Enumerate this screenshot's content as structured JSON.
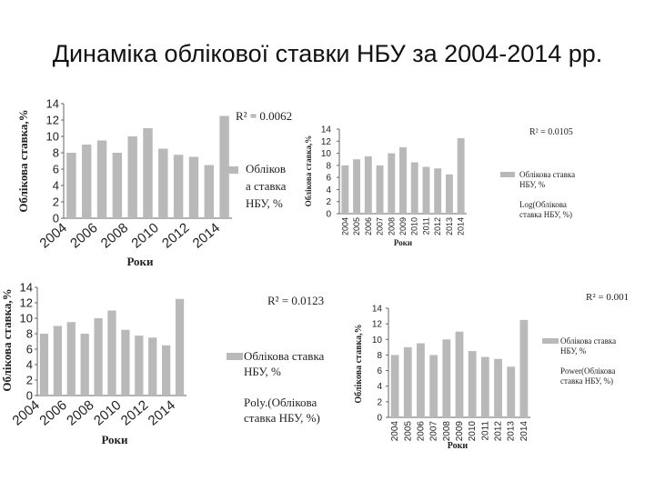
{
  "page": {
    "title": "Динаміка облікової ставки НБУ за 2004-2014 рр."
  },
  "chart_data": [
    {
      "type": "bar",
      "categories": [
        "2004",
        "2005",
        "2006",
        "2007",
        "2008",
        "2009",
        "2010",
        "2011",
        "2012",
        "2013",
        "2014"
      ],
      "series": [
        {
          "name": "Облікова ставка НБУ, %",
          "values": [
            8,
            9,
            9.5,
            8,
            10,
            11,
            8.5,
            7.75,
            7.5,
            6.5,
            12.5
          ]
        }
      ],
      "ylim": [
        0,
        14
      ],
      "yticks": [
        0,
        2,
        4,
        6,
        8,
        10,
        12,
        14
      ],
      "xticklabels": [
        "2004",
        "2006",
        "2008",
        "2010",
        "2012",
        "2014"
      ],
      "xlabel": "Роки",
      "ylabel": "Облікова ставка,%",
      "annotation": "R² = 0.0062",
      "legend": [
        "Обліков",
        "а ставка",
        "НБУ, %"
      ],
      "bar_color": "#b9b9b9"
    },
    {
      "type": "bar",
      "categories": [
        "2004",
        "2005",
        "2006",
        "2007",
        "2008",
        "2009",
        "2010",
        "2011",
        "2012",
        "2013",
        "2014"
      ],
      "series": [
        {
          "name": "Облікова ставка НБУ, %",
          "values": [
            8,
            9,
            9.5,
            8,
            10,
            11,
            8.5,
            7.75,
            7.5,
            6.5,
            12.5
          ]
        }
      ],
      "ylim": [
        0,
        14
      ],
      "yticks": [
        0,
        2,
        4,
        6,
        8,
        10,
        12,
        14
      ],
      "xticklabels": [
        "2004",
        "2005",
        "2006",
        "2007",
        "2008",
        "2009",
        "2010",
        "2011",
        "2012",
        "2013",
        "2014"
      ],
      "xlabel": "Роки",
      "ylabel": "Облікова ставка,%",
      "annotation": "R² = 0.0105",
      "legend": [
        "Облікова ставка",
        "НБУ, %",
        "",
        "Log(Облікова",
        "ставка НБУ, %)"
      ],
      "bar_color": "#b9b9b9"
    },
    {
      "type": "bar",
      "categories": [
        "2004",
        "2005",
        "2006",
        "2007",
        "2008",
        "2009",
        "2010",
        "2011",
        "2012",
        "2013",
        "2014"
      ],
      "series": [
        {
          "name": "Облікова ставка НБУ, %",
          "values": [
            8,
            9,
            9.5,
            8,
            10,
            11,
            8.5,
            7.75,
            7.5,
            6.5,
            12.5
          ]
        }
      ],
      "ylim": [
        0,
        14
      ],
      "yticks": [
        0,
        2,
        4,
        6,
        8,
        10,
        12,
        14
      ],
      "xticklabels": [
        "2004",
        "2006",
        "2008",
        "2010",
        "2012",
        "2014"
      ],
      "xlabel": "Роки",
      "ylabel": "Облікова ставка,%",
      "annotation": "R² = 0.0123",
      "legend": [
        "Облікова ставка",
        "НБУ, %",
        "",
        "Poly.(Облікова",
        "ставка НБУ, %)"
      ],
      "bar_color": "#b9b9b9"
    },
    {
      "type": "bar",
      "categories": [
        "2004",
        "2005",
        "2006",
        "2007",
        "2008",
        "2009",
        "2010",
        "2011",
        "2012",
        "2013",
        "2014"
      ],
      "series": [
        {
          "name": "Облікова ставка НБУ, %",
          "values": [
            8,
            9,
            9.5,
            8,
            10,
            11,
            8.5,
            7.75,
            7.5,
            6.5,
            12.5
          ]
        }
      ],
      "ylim": [
        0,
        14
      ],
      "yticks": [
        0,
        2,
        4,
        6,
        8,
        10,
        12,
        14
      ],
      "xticklabels": [
        "2004",
        "2005",
        "2006",
        "2007",
        "2008",
        "2009",
        "2010",
        "2011",
        "2012",
        "2013",
        "2014"
      ],
      "xlabel": "Роки",
      "ylabel": "Облікова ставка,%",
      "annotation": "R² = 0.001",
      "legend": [
        "Облікова ставка",
        "НБУ, %",
        "",
        "Power(Облікова",
        "ставка НБУ, %)"
      ],
      "bar_color": "#b9b9b9"
    }
  ]
}
